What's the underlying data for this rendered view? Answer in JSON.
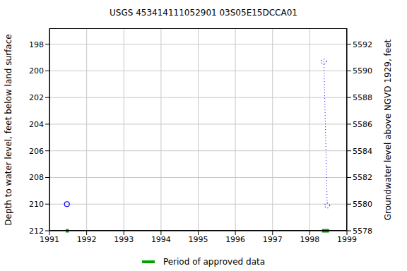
{
  "chart_data": {
    "type": "line",
    "title": "USGS 453414111052901 03S05E15DCCA01",
    "y_label": "Depth to water level, feet below land surface",
    "y2_label": "Groundwater level above NGVD 1929, feet",
    "x": [
      1991.47,
      1998.38,
      1998.47
    ],
    "series": [
      {
        "color": "#0000ff",
        "marker": "circle",
        "line_style": "none",
        "values": [
          210.0,
          null,
          null
        ]
      },
      {
        "color": "#0000ff",
        "marker": "circle",
        "line_style": "dotted",
        "values": [
          null,
          199.3,
          210.1
        ]
      }
    ],
    "xlim": [
      1991,
      1999
    ],
    "xticks": [
      1991,
      1992,
      1993,
      1994,
      1995,
      1996,
      1997,
      1998,
      1999
    ],
    "ylim": [
      196.8,
      212
    ],
    "yticks": [
      198,
      200,
      202,
      204,
      206,
      208,
      210,
      212
    ],
    "y2lim": [
      5578,
      5593.2
    ],
    "y2ticks": [
      5578,
      5580,
      5582,
      5584,
      5586,
      5588,
      5590,
      5592
    ],
    "grid": true,
    "approved_periods": {
      "name": "Period of approved data",
      "color": "#00a000",
      "ranges": [
        [
          1991.44,
          1991.52
        ],
        [
          1998.33,
          1998.52
        ]
      ]
    }
  }
}
